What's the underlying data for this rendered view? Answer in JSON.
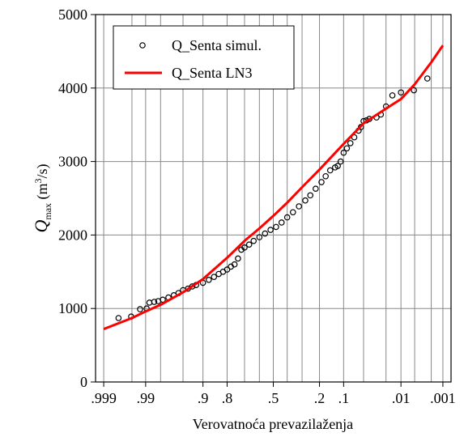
{
  "chart_data": {
    "type": "scatter",
    "xscale": "normal-probability",
    "xlabel": "Verovatnoća prevazilaženja",
    "ylabel": {
      "symbol": "Q",
      "subscript": "max",
      "unit_open": " (m",
      "unit_power": "3",
      "unit_close": "/s)"
    },
    "xlim": [
      0.9994,
      0.0006
    ],
    "xticks": [
      {
        "value": 0.999,
        "label": ".999"
      },
      {
        "value": 0.99,
        "label": ".99"
      },
      {
        "value": 0.9,
        "label": ".9"
      },
      {
        "value": 0.8,
        "label": ".8"
      },
      {
        "value": 0.5,
        "label": ".5"
      },
      {
        "value": 0.2,
        "label": ".2"
      },
      {
        "value": 0.1,
        "label": ".1"
      },
      {
        "value": 0.01,
        "label": ".01"
      },
      {
        "value": 0.001,
        "label": ".001"
      }
    ],
    "xgrid": [
      0.999,
      0.995,
      0.99,
      0.98,
      0.95,
      0.9,
      0.8,
      0.7,
      0.6,
      0.5,
      0.4,
      0.3,
      0.2,
      0.1,
      0.05,
      0.02,
      0.01,
      0.005,
      0.002,
      0.001
    ],
    "ylim": [
      0,
      5000
    ],
    "yticks": [
      0,
      1000,
      2000,
      3000,
      4000,
      5000
    ],
    "grid": true,
    "legend": "upper left",
    "series": [
      {
        "name": "Q_Senta simul.",
        "type": "scatter",
        "color": "#000000",
        "x": [
          0.9976,
          0.9952,
          0.9924,
          0.9895,
          0.988,
          0.985,
          0.982,
          0.978,
          0.972,
          0.965,
          0.958,
          0.95,
          0.94,
          0.93,
          0.92,
          0.9,
          0.88,
          0.86,
          0.84,
          0.82,
          0.8,
          0.78,
          0.76,
          0.74,
          0.72,
          0.7,
          0.67,
          0.64,
          0.6,
          0.56,
          0.52,
          0.48,
          0.44,
          0.4,
          0.36,
          0.32,
          0.28,
          0.25,
          0.22,
          0.19,
          0.17,
          0.15,
          0.13,
          0.12,
          0.11,
          0.1,
          0.09,
          0.08,
          0.07,
          0.06,
          0.055,
          0.05,
          0.045,
          0.04,
          0.03,
          0.025,
          0.02,
          0.015,
          0.01,
          0.0052,
          0.0025
        ],
        "values": [
          870,
          890,
          990,
          1000,
          1080,
          1090,
          1100,
          1120,
          1150,
          1180,
          1210,
          1250,
          1270,
          1300,
          1320,
          1350,
          1390,
          1430,
          1470,
          1500,
          1530,
          1570,
          1600,
          1680,
          1800,
          1830,
          1870,
          1920,
          1970,
          2020,
          2070,
          2110,
          2170,
          2240,
          2310,
          2390,
          2470,
          2540,
          2630,
          2720,
          2800,
          2880,
          2920,
          2940,
          3000,
          3120,
          3180,
          3250,
          3330,
          3420,
          3470,
          3550,
          3560,
          3580,
          3600,
          3640,
          3750,
          3900,
          3940,
          3970,
          4130
        ]
      },
      {
        "name": "Q_Senta LN3",
        "type": "line",
        "color": "#ff0000",
        "x": [
          0.999,
          0.995,
          0.99,
          0.98,
          0.95,
          0.9,
          0.8,
          0.7,
          0.6,
          0.5,
          0.4,
          0.3,
          0.2,
          0.1,
          0.05,
          0.02,
          0.01,
          0.005,
          0.002,
          0.001
        ],
        "values": [
          720,
          870,
          960,
          1050,
          1220,
          1400,
          1690,
          1920,
          2090,
          2260,
          2440,
          2650,
          2890,
          3240,
          3520,
          3720,
          3850,
          4050,
          4350,
          4580
        ]
      }
    ]
  }
}
